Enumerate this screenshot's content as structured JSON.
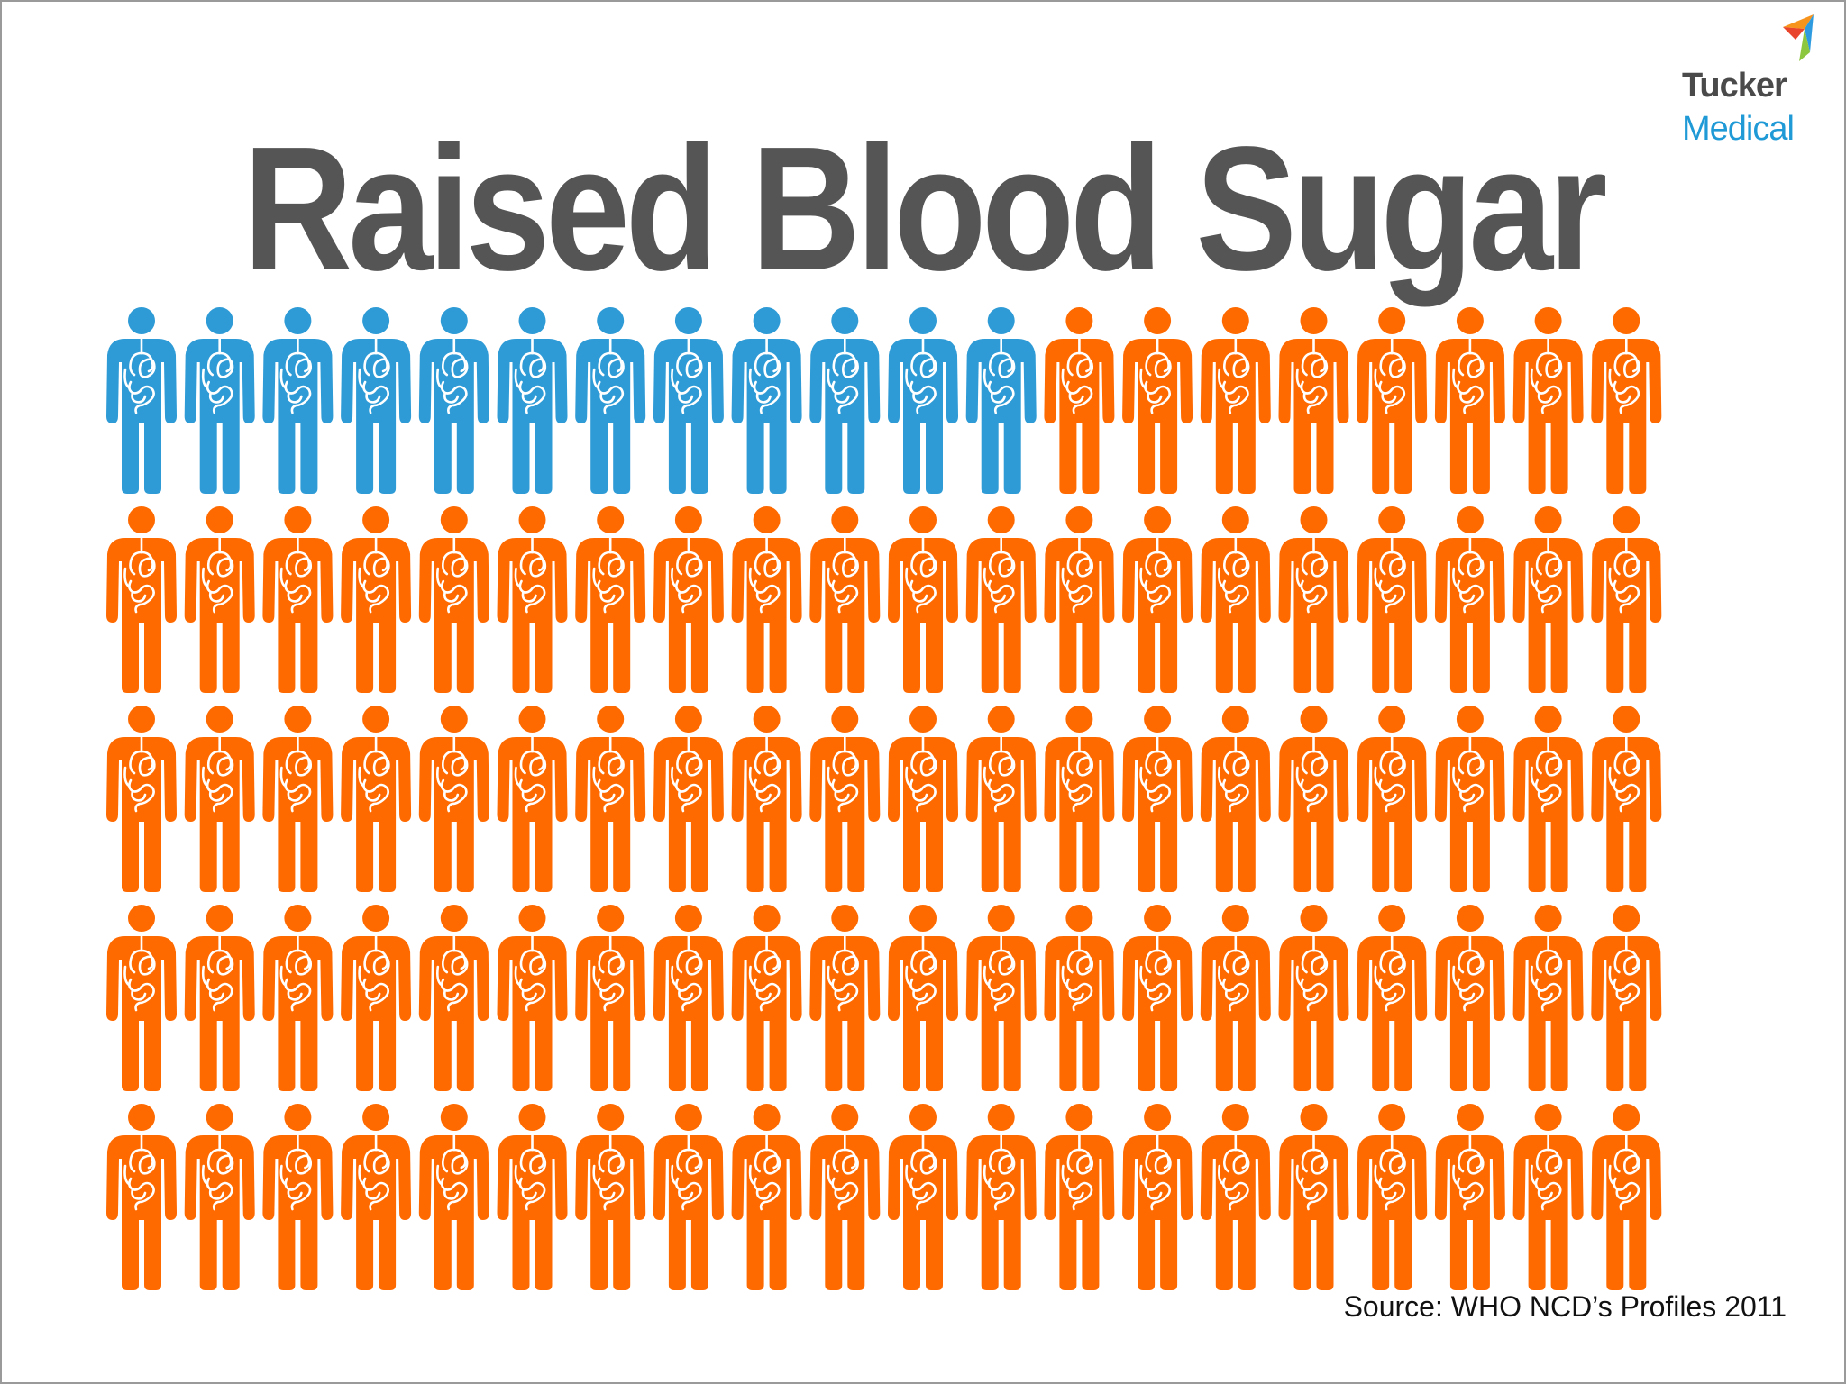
{
  "logo": {
    "line1": "Tucker",
    "line2": "Medical",
    "colors": [
      "#f7941d",
      "#e8452c",
      "#2e9be0",
      "#8dc63f"
    ]
  },
  "chart_data": {
    "type": "pictogram",
    "title": "Raised Blood Sugar",
    "total_icons": 100,
    "rows": 5,
    "columns": 20,
    "series": [
      {
        "color": "#2e9bd6",
        "count": 12
      },
      {
        "color": "#ff6a00",
        "count": 88
      }
    ],
    "icon": "person-with-organs-icon"
  },
  "source": "Source: WHO NCD’s Profiles 2011"
}
